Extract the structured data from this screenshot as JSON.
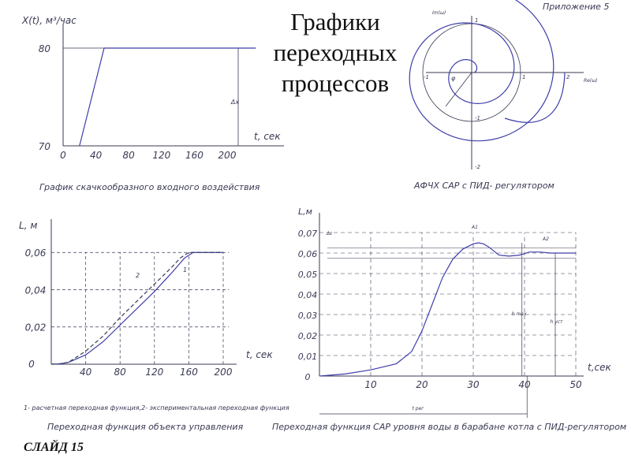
{
  "title_lines": [
    "Графики",
    "переходных",
    "процессов"
  ],
  "slide_label": "СЛАЙД 15",
  "appendix_label": "Приложение 5",
  "chart_data": [
    {
      "type": "line",
      "ylabel": "X(t), м³/час",
      "xlabel": "t, сек",
      "x_ticks": [
        0,
        40,
        80,
        120,
        160,
        200
      ],
      "y_ticks": [
        70,
        80
      ],
      "annotations": [
        "Δx"
      ],
      "points": [
        [
          20,
          70
        ],
        [
          50,
          80
        ],
        [
          235,
          80
        ]
      ],
      "caption": "График скачкообразного входного воздействия"
    },
    {
      "type": "line",
      "caption": "АФЧХ САР с ПИД- регулятором",
      "x_axis_label": "Re(ω)",
      "y_axis_label": "Im(ω)",
      "x_ticks": [
        "-1",
        "1",
        "2"
      ],
      "y_ticks": [
        "1",
        "-1",
        "-2"
      ],
      "annotations": [
        "φ"
      ]
    },
    {
      "type": "line",
      "ylabel": "L, м",
      "xlabel": "t, сек",
      "x_ticks": [
        0,
        40,
        80,
        120,
        160,
        200
      ],
      "y_ticks": [
        "0",
        "0,02",
        "0,04",
        "0,06"
      ],
      "series": [
        {
          "name": "1",
          "x": [
            0,
            10,
            20,
            40,
            60,
            80,
            100,
            120,
            140,
            155,
            165,
            175,
            200
          ],
          "values": [
            0,
            0.0002,
            0.001,
            0.005,
            0.012,
            0.021,
            0.03,
            0.039,
            0.049,
            0.057,
            0.06,
            0.06,
            0.06
          ]
        },
        {
          "name": "2",
          "x": [
            0,
            10,
            20,
            40,
            60,
            80,
            100,
            120,
            140,
            150,
            160,
            175,
            200
          ],
          "values": [
            0,
            0.0002,
            0.001,
            0.007,
            0.015,
            0.025,
            0.034,
            0.043,
            0.052,
            0.057,
            0.06,
            0.06,
            0.06
          ]
        }
      ],
      "caption": "Переходная функция объекта управления",
      "note": "1- расчетная переходная функция,2- экспериментальная переходная функция"
    },
    {
      "type": "line",
      "ylabel": "L,м",
      "xlabel": "t,сек",
      "x_ticks": [
        10,
        20,
        30,
        40,
        50
      ],
      "y_ticks": [
        "0",
        "0,01",
        "0,02",
        "0,03",
        "0,04",
        "0,05",
        "0,06",
        "0,07"
      ],
      "x": [
        0,
        5,
        10,
        15,
        18,
        20,
        22,
        24,
        26,
        28,
        30,
        31,
        32,
        33,
        35,
        37,
        39,
        41,
        43,
        45,
        47,
        50
      ],
      "values": [
        0,
        0.001,
        0.003,
        0.006,
        0.012,
        0.022,
        0.035,
        0.048,
        0.057,
        0.062,
        0.0645,
        0.065,
        0.0645,
        0.063,
        0.059,
        0.0585,
        0.059,
        0.0605,
        0.0605,
        0.06,
        0.06,
        0.06
      ],
      "annotations": [
        "Δε",
        "A1",
        "A2",
        "h max",
        "h уст",
        "t рег"
      ],
      "caption": "Переходная функция САР уровня воды в барабане котла с ПИД-регулятором"
    }
  ]
}
